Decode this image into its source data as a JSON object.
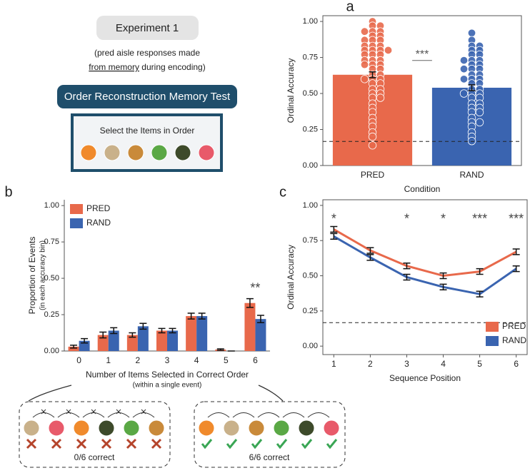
{
  "header": {
    "title": "Experiment 1",
    "note_line1": "(pred aisle responses made",
    "note_underlined": "from memory",
    "note_rest": " during encoding)",
    "test_title": "Order Reconstruction Memory Test",
    "prompt": "Select the Items in Order"
  },
  "chart_data": [
    {
      "type": "bar",
      "panel": "a",
      "ylabel": "Ordinal Accuracy",
      "xlabel": "Condition",
      "categories": [
        "PRED",
        "RAND"
      ],
      "values": [
        0.63,
        0.54
      ],
      "errors": [
        0.02,
        0.02
      ],
      "colors": [
        "#e8694b",
        "#3a64b0"
      ],
      "points": [
        [
          1.0,
          0.97,
          0.97,
          0.93,
          0.93,
          0.93,
          0.9,
          0.9,
          0.87,
          0.87,
          0.87,
          0.83,
          0.83,
          0.83,
          0.8,
          0.8,
          0.8,
          0.8,
          0.77,
          0.77,
          0.77,
          0.73,
          0.73,
          0.73,
          0.7,
          0.7,
          0.7,
          0.67,
          0.67,
          0.63,
          0.63,
          0.6,
          0.6,
          0.6,
          0.57,
          0.57,
          0.53,
          0.53,
          0.5,
          0.5,
          0.47,
          0.47,
          0.43,
          0.4,
          0.37,
          0.33,
          0.3,
          0.27,
          0.23,
          0.2,
          0.14
        ],
        [
          0.92,
          0.87,
          0.83,
          0.83,
          0.8,
          0.8,
          0.77,
          0.77,
          0.73,
          0.73,
          0.73,
          0.7,
          0.7,
          0.67,
          0.67,
          0.67,
          0.63,
          0.63,
          0.6,
          0.6,
          0.6,
          0.57,
          0.57,
          0.53,
          0.53,
          0.5,
          0.5,
          0.5,
          0.47,
          0.47,
          0.43,
          0.43,
          0.4,
          0.4,
          0.37,
          0.37,
          0.33,
          0.3,
          0.3,
          0.27,
          0.23,
          0.2,
          0.17
        ]
      ],
      "reference_line": 0.167,
      "significance": "***",
      "ylim": [
        0,
        1.04
      ],
      "yticks": [
        {
          "value": 0,
          "label": "0.00"
        },
        {
          "value": 0.25,
          "label": "0.25"
        },
        {
          "value": 0.5,
          "label": "0.50"
        },
        {
          "value": 0.75,
          "label": "0.75"
        },
        {
          "value": 1,
          "label": "1.00"
        }
      ]
    },
    {
      "type": "grouped_bar",
      "panel": "b",
      "ylabel": "Proportion of Events",
      "ylabel_sub": "(in each accuracy bin)",
      "xlabel": "Number of Items Selected in Correct Order",
      "xlabel_sub": "(within a single event)",
      "categories": [
        "0",
        "1",
        "2",
        "3",
        "4",
        "5",
        "6"
      ],
      "series": [
        {
          "name": "PRED",
          "color": "#e8694b",
          "values": [
            0.03,
            0.11,
            0.11,
            0.14,
            0.24,
            0.01,
            0.33
          ],
          "errors": [
            0.01,
            0.02,
            0.015,
            0.015,
            0.02,
            0.005,
            0.03
          ]
        },
        {
          "name": "RAND",
          "color": "#3a64b0",
          "values": [
            0.07,
            0.14,
            0.17,
            0.14,
            0.24,
            0.0,
            0.22
          ],
          "errors": [
            0.015,
            0.02,
            0.02,
            0.015,
            0.02,
            0.0,
            0.025
          ]
        }
      ],
      "annotations": [
        {
          "category": "6",
          "text": "**"
        }
      ],
      "legend": "upper left",
      "ylim": [
        0,
        1.04
      ],
      "yticks": [
        {
          "value": 0,
          "label": "0.00"
        },
        {
          "value": 0.25,
          "label": "0.25"
        },
        {
          "value": 0.5,
          "label": "0.50"
        },
        {
          "value": 0.75,
          "label": "0.75"
        },
        {
          "value": 1,
          "label": "1.00"
        }
      ]
    },
    {
      "type": "line",
      "panel": "c",
      "ylabel": "Ordinal Accuracy",
      "xlabel": "Sequence Position",
      "x": [
        1,
        2,
        3,
        4,
        5,
        6
      ],
      "series": [
        {
          "name": "PRED",
          "color": "#e8694b",
          "values": [
            0.83,
            0.68,
            0.57,
            0.5,
            0.53,
            0.67
          ],
          "errors": [
            0.02,
            0.02,
            0.02,
            0.02,
            0.02,
            0.02
          ]
        },
        {
          "name": "RAND",
          "color": "#3a64b0",
          "values": [
            0.78,
            0.63,
            0.49,
            0.42,
            0.37,
            0.55
          ],
          "errors": [
            0.02,
            0.02,
            0.02,
            0.02,
            0.02,
            0.02
          ]
        }
      ],
      "annotations": [
        {
          "x": 1,
          "text": "*"
        },
        {
          "x": 3,
          "text": "*"
        },
        {
          "x": 4,
          "text": "*"
        },
        {
          "x": 5,
          "text": "***"
        },
        {
          "x": 6,
          "text": "***"
        }
      ],
      "reference_line": 0.167,
      "legend": "lower right",
      "xlim": [
        0.7,
        6.3
      ],
      "xticks": [
        1,
        2,
        3,
        4,
        5,
        6
      ],
      "ylim": [
        -0.06,
        1.04
      ],
      "yticks": [
        {
          "value": 0,
          "label": "0.00"
        },
        {
          "value": 0.25,
          "label": "0.25"
        },
        {
          "value": 0.5,
          "label": "0.50"
        },
        {
          "value": 0.75,
          "label": "0.75"
        },
        {
          "value": 1,
          "label": "1.00"
        }
      ]
    }
  ],
  "examples": {
    "wrong": "0/6 correct",
    "right": "6/6 correct"
  }
}
